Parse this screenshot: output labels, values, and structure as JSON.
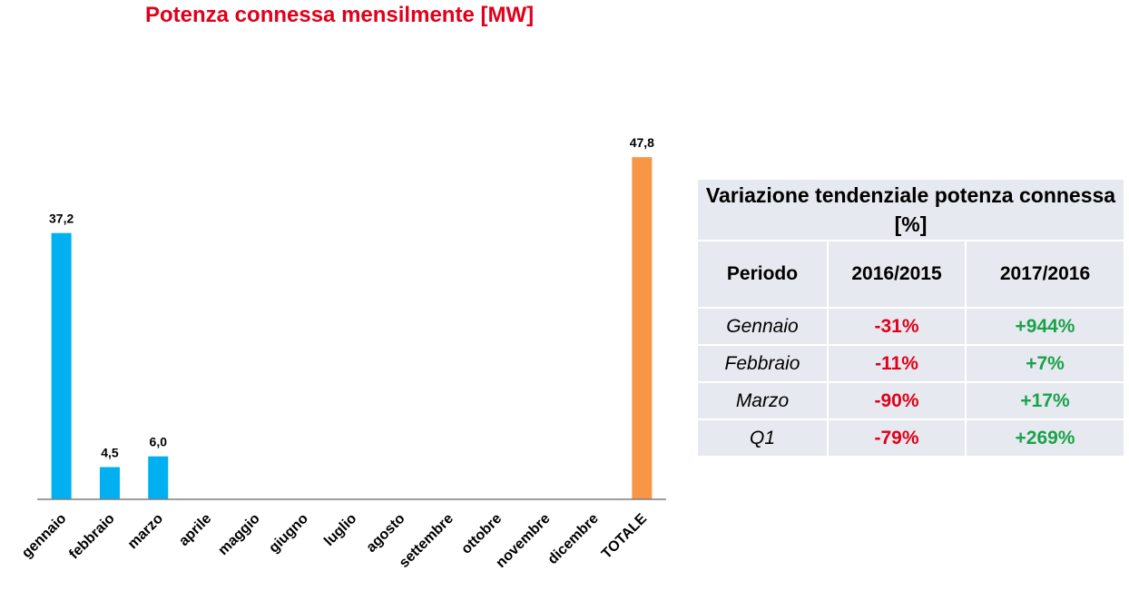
{
  "chart_data": {
    "type": "bar",
    "title": "Potenza connessa mensilmente [MW]",
    "categories": [
      "gennaio",
      "febbraio",
      "marzo",
      "aprile",
      "maggio",
      "giugno",
      "luglio",
      "agosto",
      "settembre",
      "ottobre",
      "novembre",
      "dicembre",
      "TOTALE"
    ],
    "values": [
      37.2,
      4.5,
      6.0,
      null,
      null,
      null,
      null,
      null,
      null,
      null,
      null,
      null,
      47.8
    ],
    "data_labels": [
      "37,2",
      "4,5",
      "6,0",
      "",
      "",
      "",
      "",
      "",
      "",
      "",
      "",
      "",
      "47,8"
    ],
    "ylim": [
      0,
      52
    ],
    "grid": false,
    "colors": {
      "month": "#00b0f0",
      "total": "#f79646",
      "title": "#e0001b",
      "axis": "#7f7f7f"
    }
  },
  "table": {
    "title": "Variazione tendenziale potenza connessa [%]",
    "headers": [
      "Periodo",
      "2016/2015",
      "2017/2016"
    ],
    "rows": [
      {
        "period": "Gennaio",
        "v1": "-31%",
        "v2": "+944%"
      },
      {
        "period": "Febbraio",
        "v1": "-11%",
        "v2": "+7%"
      },
      {
        "period": "Marzo",
        "v1": "-90%",
        "v2": "+17%"
      },
      {
        "period": "Q1",
        "v1": "-79%",
        "v2": "+269%"
      }
    ],
    "colors": {
      "negative": "#e0001b",
      "positive": "#1aa24a",
      "background": "#e6e9ef"
    }
  }
}
